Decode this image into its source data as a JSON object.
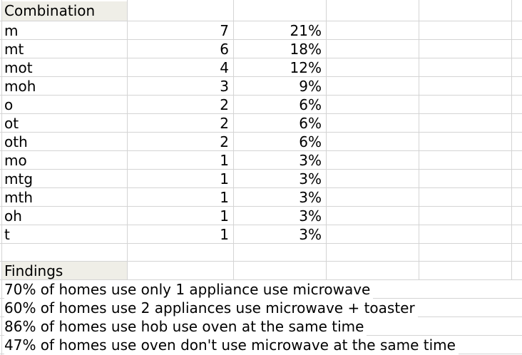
{
  "header": {
    "label": "Combination"
  },
  "rows": [
    {
      "combo": "m",
      "count": "7",
      "pct": "21%"
    },
    {
      "combo": "mt",
      "count": "6",
      "pct": "18%"
    },
    {
      "combo": "mot",
      "count": "4",
      "pct": "12%"
    },
    {
      "combo": "moh",
      "count": "3",
      "pct": "9%"
    },
    {
      "combo": "o",
      "count": "2",
      "pct": "6%"
    },
    {
      "combo": "ot",
      "count": "2",
      "pct": "6%"
    },
    {
      "combo": "oth",
      "count": "2",
      "pct": "6%"
    },
    {
      "combo": "mo",
      "count": "1",
      "pct": "3%"
    },
    {
      "combo": "mtg",
      "count": "1",
      "pct": "3%"
    },
    {
      "combo": "mth",
      "count": "1",
      "pct": "3%"
    },
    {
      "combo": "oh",
      "count": "1",
      "pct": "3%"
    },
    {
      "combo": "t",
      "count": "1",
      "pct": "3%"
    }
  ],
  "findings": {
    "label": "Findings",
    "items": [
      "70% of homes use only 1 appliance use microwave",
      "60% of homes use 2 appliances use microwave + toaster",
      "86% of homes use hob use oven at the same time",
      "47% of homes use oven don't use microwave at the same time"
    ]
  }
}
